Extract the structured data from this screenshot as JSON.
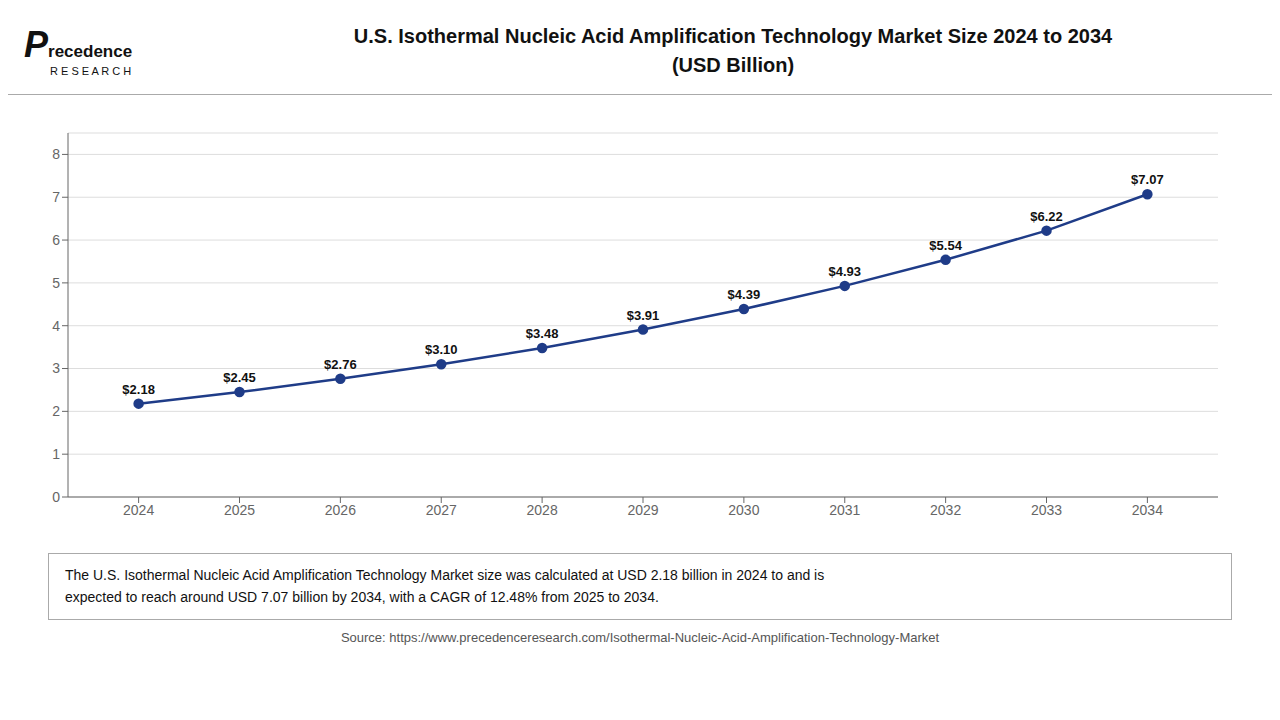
{
  "chart_data": {
    "type": "line",
    "title": "U.S. Isothermal Nucleic Acid Amplification Technology Market Size 2024 to 2034",
    "subtitle": "(USD Billion)",
    "x": [
      2024,
      2025,
      2026,
      2027,
      2028,
      2029,
      2030,
      2031,
      2032,
      2033,
      2034
    ],
    "values": [
      2.18,
      2.45,
      2.76,
      3.1,
      3.48,
      3.91,
      4.39,
      4.93,
      5.54,
      6.22,
      7.07
    ],
    "value_labels": [
      "$2.18",
      "$2.45",
      "$2.76",
      "$3.10",
      "$3.48",
      "$3.91",
      "$4.39",
      "$4.93",
      "$5.54",
      "$6.22",
      "$7.07"
    ],
    "data_labels": true,
    "color": "#1F3C88",
    "xlim": [
      2023.3,
      2034.7
    ],
    "xticks": [
      2024,
      2025,
      2026,
      2027,
      2028,
      2029,
      2030,
      2031,
      2032,
      2033,
      2034
    ],
    "ylim": [
      0,
      8.5
    ],
    "yticks": [
      0,
      1,
      2,
      3,
      4,
      5,
      6,
      7,
      8
    ],
    "grid": true,
    "annotations": [
      "P",
      "recedence",
      "R E S E A R C H",
      "The U.S. Isothermal Nucleic Acid Amplification Technology Market size was calculated at USD 2.18 billion in 2024 to and is\nexpected to reach around USD 7.07 billion by 2034, with a CAGR of 12.48% from 2025 to 2034.",
      "Source: https://www.precedenceresearch.com/Isothermal-Nucleic-Acid-Amplification-Technology-Market"
    ]
  }
}
